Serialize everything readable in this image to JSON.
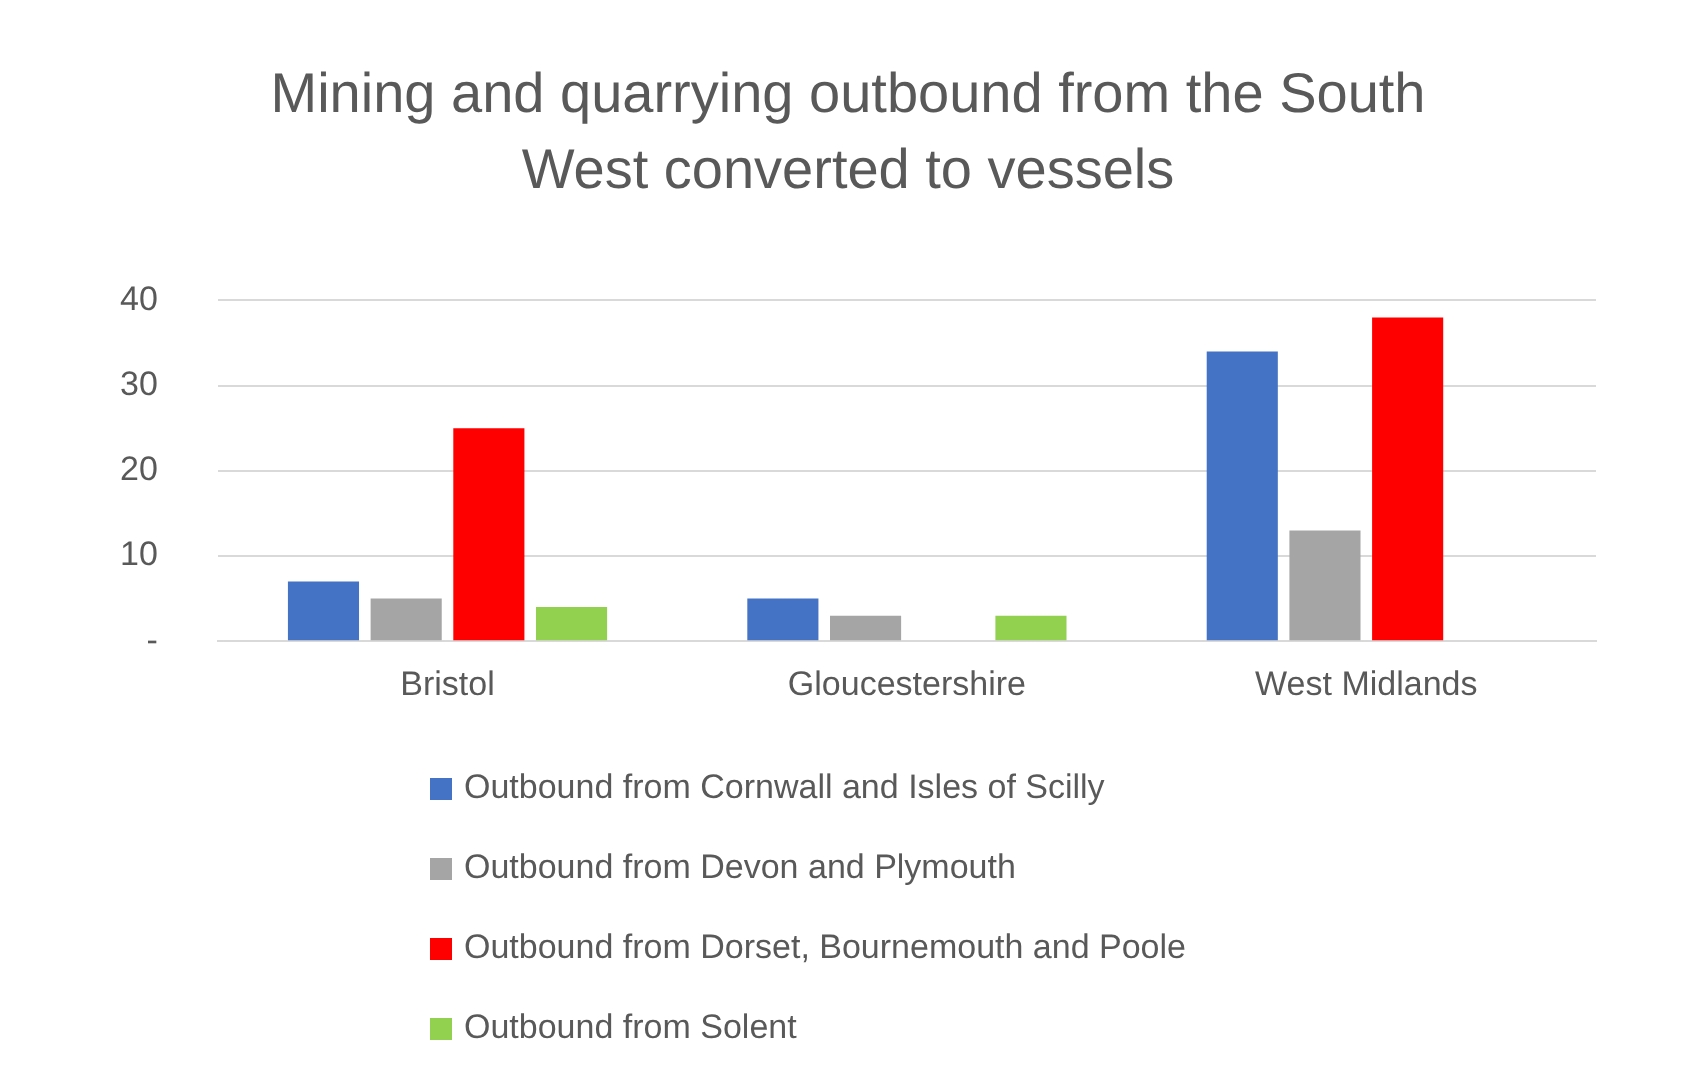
{
  "chart_data": {
    "type": "bar",
    "title": "Mining and quarrying outbound from the South West converted to vessels",
    "categories": [
      "Bristol",
      "Gloucestershire",
      "West Midlands"
    ],
    "series": [
      {
        "name": "Outbound from Cornwall and Isles of Scilly",
        "color": "#4472c4",
        "values": [
          7,
          5,
          34
        ]
      },
      {
        "name": "Outbound from Devon and Plymouth",
        "color": "#a5a5a5",
        "values": [
          5,
          3,
          13
        ]
      },
      {
        "name": "Outbound from Dorset, Bournemouth and Poole",
        "color": "#ff0000",
        "values": [
          25,
          0,
          38
        ]
      },
      {
        "name": "Outbound from Solent",
        "color": "#92d050",
        "values": [
          4,
          3,
          0
        ]
      }
    ],
    "ylim": [
      0,
      40
    ],
    "yticks": [
      {
        "value": 0,
        "label": "-"
      },
      10,
      20,
      30,
      40
    ],
    "grid": "y",
    "legend": "bottom"
  }
}
